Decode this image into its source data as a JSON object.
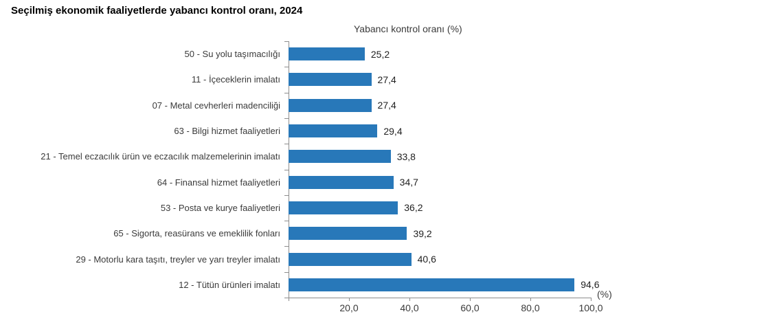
{
  "page": {
    "title": "Seçilmiş ekonomik faaliyetlerde yabancı kontrol oranı, 2024"
  },
  "chart_data": {
    "type": "bar",
    "orientation": "horizontal",
    "title": "Seçilmiş ekonomik faaliyetlerde yabancı kontrol oranı, 2024",
    "axis_title": "Yabancı kontrol oranı (%)",
    "categories": [
      "50 - Su yolu taşımacılığı",
      "11 - İçeceklerin imalatı",
      "07 - Metal cevherleri madenciliği",
      "63 - Bilgi hizmet faaliyetleri",
      "21 - Temel eczacılık ürün ve eczacılık malzemelerinin imalatı",
      "64 - Finansal hizmet faaliyetleri",
      "53 - Posta ve kurye faaliyetleri",
      "65 - Sigorta, reasürans ve emeklilik fonları",
      "29 - Motorlu kara taşıtı, treyler ve yarı treyler imalatı",
      "12 - Tütün ürünleri imalatı"
    ],
    "values": [
      25.2,
      27.4,
      27.4,
      29.4,
      33.8,
      34.7,
      36.2,
      39.2,
      40.6,
      94.6
    ],
    "value_labels": [
      "25,2",
      "27,4",
      "27,4",
      "29,4",
      "33,8",
      "34,7",
      "36,2",
      "39,2",
      "40,6",
      "94,6"
    ],
    "xlabel": "",
    "ylabel": "",
    "xlim": [
      0,
      100
    ],
    "x_tick_values": [
      20,
      40,
      60,
      80,
      100
    ],
    "x_tick_labels": [
      "20,0",
      "40,0",
      "60,0",
      "80,0",
      "100,0"
    ],
    "axis_unit_label": "(%)",
    "grid": false,
    "legend_position": "none",
    "bar_color": "#2878B9",
    "axis_color": "#8C8C8C"
  }
}
